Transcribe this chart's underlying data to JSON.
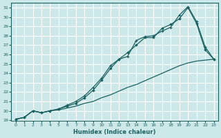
{
  "xlabel": "Humidex (Indice chaleur)",
  "bg_color": "#cce8e8",
  "grid_color": "#ffffff",
  "line_color": "#1a6060",
  "xlim": [
    -0.5,
    23.5
  ],
  "ylim": [
    19,
    31.5
  ],
  "xticks": [
    0,
    1,
    2,
    3,
    4,
    5,
    6,
    7,
    8,
    9,
    10,
    11,
    12,
    13,
    14,
    15,
    16,
    17,
    18,
    19,
    20,
    21,
    22,
    23
  ],
  "yticks": [
    19,
    20,
    21,
    22,
    23,
    24,
    25,
    26,
    27,
    28,
    29,
    30,
    31
  ],
  "line1_x": [
    0,
    1,
    2,
    3,
    4,
    5,
    6,
    7,
    8,
    9,
    10,
    11,
    12,
    13,
    14,
    15,
    16,
    17,
    18,
    19,
    20,
    21,
    22,
    23
  ],
  "line1_y": [
    19.1,
    19.3,
    20.0,
    19.8,
    20.0,
    20.1,
    20.3,
    20.5,
    20.8,
    21.0,
    21.4,
    21.7,
    22.1,
    22.5,
    22.8,
    23.2,
    23.6,
    24.0,
    24.4,
    24.8,
    25.1,
    25.3,
    25.4,
    25.5
  ],
  "line2_x": [
    0,
    1,
    2,
    3,
    4,
    5,
    6,
    7,
    8,
    9,
    10,
    11,
    12,
    13,
    14,
    15,
    16,
    17,
    18,
    19,
    20,
    21,
    22,
    23
  ],
  "line2_y": [
    19.1,
    19.3,
    20.0,
    19.8,
    20.0,
    20.2,
    20.5,
    20.8,
    21.4,
    22.2,
    23.3,
    24.5,
    25.5,
    26.2,
    27.0,
    27.8,
    27.8,
    28.8,
    29.2,
    29.8,
    31.0,
    29.3,
    26.5,
    25.5
  ],
  "line3_x": [
    0,
    1,
    2,
    3,
    4,
    5,
    6,
    7,
    8,
    9,
    10,
    11,
    12,
    13,
    14,
    15,
    16,
    17,
    18,
    19,
    20,
    21,
    22,
    23
  ],
  "line3_y": [
    19.1,
    19.3,
    20.0,
    19.8,
    20.0,
    20.2,
    20.6,
    21.0,
    21.6,
    22.5,
    23.5,
    24.8,
    25.5,
    25.8,
    27.5,
    27.9,
    28.0,
    28.5,
    28.9,
    30.2,
    31.1,
    29.5,
    26.8,
    25.5
  ]
}
